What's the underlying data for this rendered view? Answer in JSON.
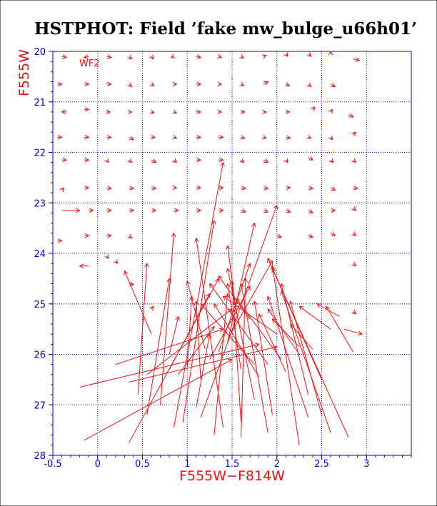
{
  "chart_data": {
    "type": "scatter",
    "subtype": "color-magnitude vector field (input -> recovered)",
    "title": "HSTPHOT: Field ’fake mw_bulge_u66h01’",
    "xlabel": "F555W−F814W",
    "ylabel": "F555W",
    "annotation": "WF2",
    "xlim": [
      -0.5,
      3.5
    ],
    "ylim": [
      28,
      20
    ],
    "y_inverted": true,
    "x_ticks": [
      "-0.5",
      "0",
      "0.5",
      "1",
      "1.5",
      "2",
      "2.5",
      "3"
    ],
    "y_ticks": [
      "20",
      "21",
      "22",
      "23",
      "24",
      "25",
      "26",
      "27",
      "28"
    ],
    "grid": true,
    "colors": {
      "axes": "#0000cc",
      "grid": "#0000cc",
      "arrows": "#ee1111",
      "labels": "#ee1111",
      "title": "#000000"
    },
    "arrows": [
      [
        -0.4,
        20.1,
        -0.35,
        20.12
      ],
      [
        -0.1,
        20.1,
        -0.15,
        20.12
      ],
      [
        0.1,
        20.1,
        0.15,
        20.12
      ],
      [
        0.35,
        20.1,
        0.38,
        20.15
      ],
      [
        0.6,
        20.1,
        0.62,
        20.15
      ],
      [
        0.85,
        20.1,
        0.82,
        20.12
      ],
      [
        1.1,
        20.1,
        1.15,
        20.12
      ],
      [
        1.35,
        20.1,
        1.38,
        20.12
      ],
      [
        1.6,
        20.1,
        1.63,
        20.13
      ],
      [
        1.85,
        20.1,
        1.88,
        20.08
      ],
      [
        2.1,
        20.05,
        2.12,
        20.1
      ],
      [
        2.35,
        20.05,
        2.38,
        20.1
      ],
      [
        2.6,
        20.05,
        2.6,
        20.0
      ],
      [
        2.85,
        20.15,
        2.92,
        20.18
      ],
      [
        -0.45,
        20.65,
        -0.4,
        20.65
      ],
      [
        -0.15,
        20.65,
        -0.1,
        20.65
      ],
      [
        0.1,
        20.65,
        0.15,
        20.65
      ],
      [
        0.35,
        20.65,
        0.38,
        20.7
      ],
      [
        0.6,
        20.65,
        0.63,
        20.68
      ],
      [
        0.85,
        20.65,
        0.88,
        20.65
      ],
      [
        1.1,
        20.65,
        1.15,
        20.65
      ],
      [
        1.35,
        20.65,
        1.38,
        20.65
      ],
      [
        1.6,
        20.65,
        1.63,
        20.68
      ],
      [
        1.85,
        20.65,
        1.9,
        20.6
      ],
      [
        2.1,
        20.65,
        2.14,
        20.68
      ],
      [
        2.35,
        20.65,
        2.38,
        20.7
      ],
      [
        2.6,
        20.65,
        2.65,
        20.7
      ],
      [
        -0.35,
        21.2,
        -0.4,
        21.2
      ],
      [
        -0.15,
        21.15,
        -0.1,
        21.15
      ],
      [
        0.1,
        21.2,
        0.14,
        21.2
      ],
      [
        0.35,
        21.2,
        0.38,
        21.2
      ],
      [
        0.6,
        21.2,
        0.63,
        21.22
      ],
      [
        0.85,
        21.2,
        0.88,
        21.22
      ],
      [
        1.1,
        21.2,
        1.15,
        21.2
      ],
      [
        1.35,
        21.2,
        1.38,
        21.2
      ],
      [
        1.6,
        21.2,
        1.64,
        21.2
      ],
      [
        1.85,
        21.2,
        1.88,
        21.2
      ],
      [
        2.1,
        21.2,
        2.14,
        21.2
      ],
      [
        2.4,
        21.15,
        2.42,
        21.1
      ],
      [
        2.6,
        21.2,
        2.62,
        21.15
      ],
      [
        2.8,
        21.25,
        2.85,
        21.3
      ],
      [
        -0.45,
        21.7,
        -0.4,
        21.7
      ],
      [
        -0.15,
        21.7,
        -0.1,
        21.7
      ],
      [
        0.1,
        21.7,
        0.15,
        21.7
      ],
      [
        0.35,
        21.7,
        0.4,
        21.75
      ],
      [
        0.6,
        21.7,
        0.64,
        21.7
      ],
      [
        0.85,
        21.7,
        0.88,
        21.72
      ],
      [
        1.1,
        21.7,
        1.15,
        21.7
      ],
      [
        1.35,
        21.7,
        1.4,
        21.7
      ],
      [
        1.6,
        21.7,
        1.64,
        21.72
      ],
      [
        1.85,
        21.7,
        1.88,
        21.72
      ],
      [
        2.1,
        21.7,
        2.15,
        21.72
      ],
      [
        2.35,
        21.7,
        2.38,
        21.72
      ],
      [
        2.6,
        21.7,
        2.62,
        21.75
      ],
      [
        2.85,
        21.65,
        2.88,
        21.6
      ],
      [
        -0.4,
        22.15,
        -0.35,
        22.15
      ],
      [
        -0.15,
        22.15,
        -0.1,
        22.15
      ],
      [
        0.1,
        22.15,
        0.12,
        22.2
      ],
      [
        0.35,
        22.15,
        0.38,
        22.2
      ],
      [
        0.6,
        22.15,
        0.65,
        22.2
      ],
      [
        0.85,
        22.15,
        0.88,
        22.2
      ],
      [
        1.1,
        22.15,
        1.15,
        22.15
      ],
      [
        1.35,
        22.15,
        1.4,
        22.15
      ],
      [
        1.6,
        22.15,
        1.63,
        22.2
      ],
      [
        1.85,
        22.15,
        1.9,
        22.2
      ],
      [
        2.1,
        22.15,
        2.12,
        22.2
      ],
      [
        2.35,
        22.1,
        2.4,
        22.15
      ],
      [
        2.6,
        22.15,
        2.63,
        22.2
      ],
      [
        2.85,
        22.15,
        2.88,
        22.2
      ],
      [
        -0.4,
        22.75,
        -0.38,
        22.7
      ],
      [
        -0.15,
        22.7,
        -0.1,
        22.7
      ],
      [
        0.1,
        22.7,
        0.15,
        22.72
      ],
      [
        0.35,
        22.7,
        0.4,
        22.72
      ],
      [
        0.6,
        22.7,
        0.65,
        22.72
      ],
      [
        0.85,
        22.7,
        0.88,
        22.7
      ],
      [
        1.1,
        22.7,
        1.15,
        22.7
      ],
      [
        1.35,
        22.7,
        1.4,
        22.7
      ],
      [
        1.6,
        22.7,
        1.65,
        22.72
      ],
      [
        1.85,
        22.7,
        1.9,
        22.72
      ],
      [
        2.1,
        22.7,
        2.15,
        22.7
      ],
      [
        2.35,
        22.7,
        2.4,
        22.72
      ],
      [
        2.6,
        22.7,
        2.65,
        22.75
      ],
      [
        2.85,
        22.7,
        2.9,
        22.72
      ],
      [
        -0.4,
        23.15,
        -0.2,
        23.15
      ],
      [
        -0.1,
        23.15,
        -0.05,
        23.15
      ],
      [
        0.1,
        23.15,
        0.15,
        23.15
      ],
      [
        0.35,
        23.15,
        0.4,
        23.15
      ],
      [
        0.6,
        23.15,
        0.65,
        23.15
      ],
      [
        0.85,
        23.15,
        0.9,
        23.15
      ],
      [
        1.1,
        23.15,
        1.15,
        23.15
      ],
      [
        1.35,
        23.15,
        1.4,
        23.15
      ],
      [
        1.6,
        23.15,
        1.65,
        23.18
      ],
      [
        1.85,
        23.15,
        1.9,
        23.18
      ],
      [
        2.1,
        23.15,
        2.15,
        23.18
      ],
      [
        2.35,
        23.15,
        2.4,
        23.2
      ],
      [
        2.6,
        23.15,
        2.65,
        23.15
      ],
      [
        2.85,
        23.1,
        2.88,
        23.15
      ],
      [
        -0.45,
        23.75,
        -0.4,
        23.75
      ],
      [
        -0.15,
        23.65,
        -0.1,
        23.65
      ],
      [
        0.1,
        23.65,
        0.15,
        23.65
      ],
      [
        0.35,
        23.65,
        0.38,
        23.7
      ],
      [
        2.0,
        23.65,
        2.05,
        23.68
      ],
      [
        2.35,
        23.65,
        2.4,
        23.68
      ],
      [
        2.6,
        23.6,
        2.65,
        23.65
      ],
      [
        2.85,
        23.6,
        2.88,
        23.65
      ],
      [
        -0.1,
        24.25,
        -0.2,
        24.25
      ],
      [
        0.1,
        24.05,
        0.12,
        24.1
      ],
      [
        0.2,
        24.15,
        0.22,
        24.2
      ],
      [
        2.85,
        24.2,
        2.88,
        24.25
      ],
      [
        0.35,
        24.6,
        0.4,
        24.62
      ],
      [
        0.6,
        25.1,
        0.62,
        25.05
      ],
      [
        2.75,
        25.5,
        2.95,
        25.6
      ],
      [
        2.85,
        25.15,
        2.88,
        25.2
      ],
      [
        -0.2,
        26.65,
        1.8,
        25.8
      ],
      [
        -0.15,
        27.7,
        1.5,
        26.1
      ],
      [
        0.2,
        26.2,
        1.4,
        25.5
      ],
      [
        0.35,
        26.55,
        2.0,
        25.85
      ],
      [
        0.35,
        27.75,
        1.35,
        24.5
      ],
      [
        0.55,
        26.4,
        1.5,
        25.1
      ],
      [
        0.7,
        27.0,
        0.85,
        23.6
      ],
      [
        0.85,
        27.45,
        1.4,
        22.2
      ],
      [
        0.8,
        26.3,
        1.25,
        24.8
      ],
      [
        0.6,
        25.6,
        0.3,
        24.35
      ],
      [
        0.55,
        27.2,
        0.8,
        24.5
      ],
      [
        0.45,
        26.8,
        0.55,
        24.2
      ],
      [
        1.1,
        27.05,
        1.25,
        25.6
      ],
      [
        1.15,
        27.25,
        2.0,
        23.05
      ],
      [
        0.95,
        27.35,
        1.3,
        23.35
      ],
      [
        1.4,
        27.45,
        1.1,
        23.7
      ],
      [
        1.3,
        27.6,
        1.45,
        24.8
      ],
      [
        1.6,
        27.35,
        1.5,
        24.55
      ],
      [
        1.6,
        27.65,
        1.65,
        24.5
      ],
      [
        1.75,
        26.9,
        1.45,
        24.3
      ],
      [
        1.9,
        27.55,
        1.6,
        24.6
      ],
      [
        1.95,
        27.2,
        1.75,
        24.95
      ],
      [
        2.25,
        27.8,
        1.95,
        24.25
      ],
      [
        2.35,
        27.25,
        1.9,
        24.85
      ],
      [
        2.35,
        26.8,
        2.05,
        24.6
      ],
      [
        2.5,
        27.2,
        2.15,
        24.95
      ],
      [
        2.6,
        27.55,
        2.05,
        24.75
      ],
      [
        2.8,
        27.65,
        1.95,
        24.3
      ],
      [
        2.5,
        26.5,
        1.9,
        24.1
      ],
      [
        1.8,
        26.45,
        1.3,
        25.0
      ],
      [
        1.75,
        26.2,
        1.15,
        25.0
      ],
      [
        2.1,
        26.35,
        1.8,
        25.2
      ],
      [
        2.05,
        26.1,
        1.55,
        24.9
      ],
      [
        2.25,
        26.0,
        1.9,
        25.1
      ],
      [
        1.35,
        25.95,
        1.7,
        24.2
      ],
      [
        1.45,
        25.7,
        1.95,
        24.15
      ],
      [
        2.25,
        25.85,
        1.95,
        25.3
      ],
      [
        2.4,
        25.9,
        2.15,
        25.4
      ],
      [
        2.6,
        25.5,
        2.25,
        25.05
      ],
      [
        2.7,
        25.25,
        2.45,
        25.0
      ],
      [
        2.85,
        25.95,
        2.55,
        25.05
      ],
      [
        1.25,
        26.1,
        1.7,
        24.65
      ],
      [
        0.9,
        26.4,
        1.3,
        25.45
      ],
      [
        1.0,
        26.25,
        1.05,
        24.85
      ],
      [
        1.15,
        26.5,
        1.1,
        24.95
      ],
      [
        0.8,
        26.0,
        0.9,
        25.25
      ],
      [
        1.6,
        26.3,
        1.45,
        24.6
      ],
      [
        1.55,
        25.2,
        1.45,
        23.85
      ],
      [
        1.7,
        25.3,
        1.35,
        24.45
      ],
      [
        1.45,
        25.75,
        1.75,
        23.4
      ],
      [
        1.9,
        26.2,
        1.25,
        24.6
      ],
      [
        1.2,
        25.9,
        1.0,
        24.55
      ],
      [
        2.0,
        25.6,
        1.4,
        24.85
      ]
    ]
  }
}
